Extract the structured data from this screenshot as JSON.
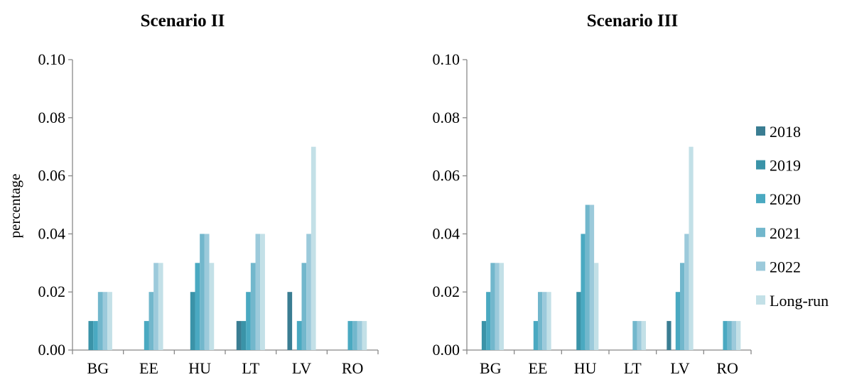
{
  "chart_data": [
    {
      "type": "bar",
      "title": "Scenario II",
      "ylabel": "percentage",
      "xlabel": "",
      "ylim": [
        0,
        0.1
      ],
      "yticks": [
        "0.00",
        "0.02",
        "0.04",
        "0.06",
        "0.08",
        "0.10"
      ],
      "categories": [
        "BG",
        "EE",
        "HU",
        "LT",
        "LV",
        "RO"
      ],
      "series": [
        {
          "name": "2018",
          "values": [
            0,
            0,
            0,
            0.01,
            0.02,
            0
          ]
        },
        {
          "name": "2019",
          "values": [
            0.01,
            0,
            0.02,
            0.01,
            0,
            0
          ]
        },
        {
          "name": "2020",
          "values": [
            0.01,
            0.01,
            0.03,
            0.02,
            0.01,
            0.01
          ]
        },
        {
          "name": "2021",
          "values": [
            0.02,
            0.02,
            0.04,
            0.03,
            0.03,
            0.01
          ]
        },
        {
          "name": "2022",
          "values": [
            0.02,
            0.03,
            0.04,
            0.04,
            0.04,
            0.01
          ]
        },
        {
          "name": "Long-run",
          "values": [
            0.02,
            0.03,
            0.03,
            0.04,
            0.07,
            0.01
          ]
        }
      ],
      "grid": false,
      "legend": "none"
    },
    {
      "type": "bar",
      "title": "Scenario III",
      "ylabel": "",
      "xlabel": "",
      "ylim": [
        0,
        0.1
      ],
      "yticks": [
        "0.00",
        "0.02",
        "0.04",
        "0.06",
        "0.08",
        "0.10"
      ],
      "categories": [
        "BG",
        "EE",
        "HU",
        "LT",
        "LV",
        "RO"
      ],
      "series": [
        {
          "name": "2018",
          "values": [
            0,
            0,
            0,
            0,
            0.01,
            0
          ]
        },
        {
          "name": "2019",
          "values": [
            0.01,
            0,
            0.02,
            0,
            0,
            0
          ]
        },
        {
          "name": "2020",
          "values": [
            0.02,
            0.01,
            0.04,
            0,
            0.02,
            0.01
          ]
        },
        {
          "name": "2021",
          "values": [
            0.03,
            0.02,
            0.05,
            0.01,
            0.03,
            0.01
          ]
        },
        {
          "name": "2022",
          "values": [
            0.03,
            0.02,
            0.05,
            0.01,
            0.04,
            0.01
          ]
        },
        {
          "name": "Long-run",
          "values": [
            0.03,
            0.02,
            0.03,
            0.01,
            0.07,
            0.01
          ]
        }
      ],
      "grid": false,
      "legend": "right"
    }
  ],
  "series_colors": [
    "#3a7d92",
    "#3a93a8",
    "#4aa9c1",
    "#72b7cc",
    "#9ccadb",
    "#c3e0e7"
  ]
}
